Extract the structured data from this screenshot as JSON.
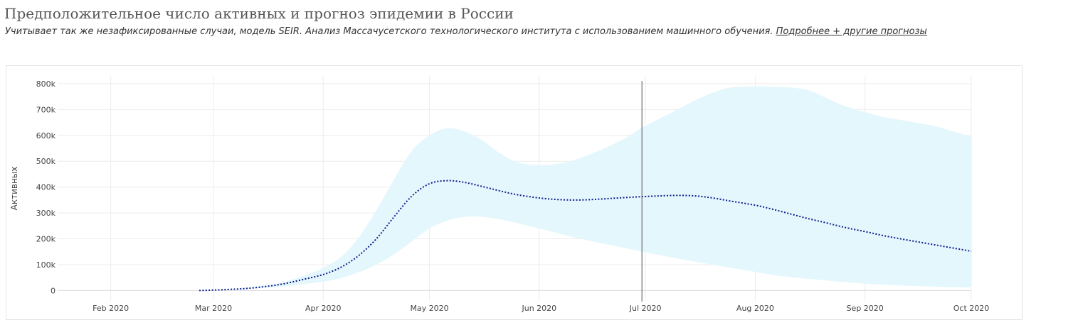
{
  "header": {
    "title": "Предположительное число активных и прогноз эпидемии в России",
    "subtitle": "Учитывает так же незафиксированные случаи, модель SEIR. Анализ Массачусетского технологического института с использованием машинного обучения.",
    "link_label": "Подробнее + другие прогнозы"
  },
  "colors": {
    "band_fill": "#e4f7fd",
    "line": "#0b1d8c",
    "grid": "#ececec",
    "marker_line": "#555555"
  },
  "chart_data": {
    "type": "line",
    "title": "",
    "xlabel": "",
    "ylabel": "Активных",
    "xlim": [
      "2020-01-17",
      "2020-10-01"
    ],
    "ylim": [
      -40000,
      830000
    ],
    "grid": true,
    "x_ticks": [
      {
        "date": "2020-02-01",
        "label": "Feb 2020"
      },
      {
        "date": "2020-03-01",
        "label": "Mar 2020"
      },
      {
        "date": "2020-04-01",
        "label": "Apr 2020"
      },
      {
        "date": "2020-05-01",
        "label": "May 2020"
      },
      {
        "date": "2020-06-01",
        "label": "Jun 2020"
      },
      {
        "date": "2020-07-01",
        "label": "Jul 2020"
      },
      {
        "date": "2020-08-01",
        "label": "Aug 2020"
      },
      {
        "date": "2020-09-01",
        "label": "Sep 2020"
      },
      {
        "date": "2020-10-01",
        "label": "Oct 2020"
      }
    ],
    "y_ticks": [
      {
        "value": 0,
        "label": "0"
      },
      {
        "value": 100000,
        "label": "100k"
      },
      {
        "value": 200000,
        "label": "200k"
      },
      {
        "value": 300000,
        "label": "300k"
      },
      {
        "value": 400000,
        "label": "400k"
      },
      {
        "value": 500000,
        "label": "500k"
      },
      {
        "value": 600000,
        "label": "600k"
      },
      {
        "value": 700000,
        "label": "700k"
      },
      {
        "value": 800000,
        "label": "800k"
      }
    ],
    "vertical_marker": "2020-06-30",
    "series": [
      {
        "kind": "line",
        "x": [
          "2020-02-26",
          "2020-03-05",
          "2020-03-12",
          "2020-03-20",
          "2020-03-27",
          "2020-04-01",
          "2020-04-06",
          "2020-04-11",
          "2020-04-16",
          "2020-04-21",
          "2020-04-26",
          "2020-05-01",
          "2020-05-06",
          "2020-05-11",
          "2020-05-16",
          "2020-05-21",
          "2020-05-26",
          "2020-06-01",
          "2020-06-06",
          "2020-06-11",
          "2020-06-16",
          "2020-06-21",
          "2020-06-26",
          "2020-06-30",
          "2020-07-05",
          "2020-07-10",
          "2020-07-15",
          "2020-07-20",
          "2020-07-25",
          "2020-08-01",
          "2020-08-06",
          "2020-08-11",
          "2020-08-16",
          "2020-08-21",
          "2020-08-26",
          "2020-09-01",
          "2020-09-06",
          "2020-09-11",
          "2020-09-16",
          "2020-09-21",
          "2020-09-26",
          "2020-10-01"
        ],
        "y": [
          0,
          4000,
          10000,
          24000,
          45000,
          62000,
          90000,
          135000,
          200000,
          285000,
          365000,
          413000,
          425000,
          418000,
          402000,
          385000,
          370000,
          358000,
          352000,
          350000,
          352000,
          356000,
          360000,
          363000,
          366000,
          368000,
          366000,
          358000,
          346000,
          330000,
          314000,
          296000,
          278000,
          262000,
          245000,
          228000,
          213000,
          200000,
          188000,
          176000,
          164000,
          152000
        ]
      },
      {
        "kind": "band",
        "x": [
          "2020-02-26",
          "2020-03-05",
          "2020-03-12",
          "2020-03-20",
          "2020-03-27",
          "2020-04-01",
          "2020-04-06",
          "2020-04-11",
          "2020-04-16",
          "2020-04-21",
          "2020-04-26",
          "2020-05-01",
          "2020-05-06",
          "2020-05-11",
          "2020-05-16",
          "2020-05-21",
          "2020-05-26",
          "2020-06-01",
          "2020-06-06",
          "2020-06-11",
          "2020-06-16",
          "2020-06-21",
          "2020-06-26",
          "2020-06-30",
          "2020-07-05",
          "2020-07-10",
          "2020-07-15",
          "2020-07-20",
          "2020-07-25",
          "2020-08-01",
          "2020-08-06",
          "2020-08-11",
          "2020-08-16",
          "2020-08-21",
          "2020-08-26",
          "2020-09-01",
          "2020-09-06",
          "2020-09-11",
          "2020-09-16",
          "2020-09-21",
          "2020-09-26",
          "2020-10-01"
        ],
        "upper": [
          0,
          5000,
          13000,
          30000,
          60000,
          88000,
          130000,
          205000,
          310000,
          430000,
          540000,
          600000,
          628000,
          615000,
          580000,
          530000,
          495000,
          485000,
          490000,
          505000,
          530000,
          560000,
          595000,
          630000,
          665000,
          700000,
          735000,
          765000,
          785000,
          790000,
          788000,
          785000,
          775000,
          745000,
          715000,
          690000,
          672000,
          660000,
          648000,
          635000,
          615000,
          595000
        ],
        "lower": [
          0,
          3000,
          8000,
          15000,
          26000,
          34000,
          48000,
          70000,
          100000,
          140000,
          190000,
          240000,
          270000,
          285000,
          285000,
          275000,
          260000,
          240000,
          222000,
          205000,
          190000,
          176000,
          162000,
          150000,
          137000,
          124000,
          112000,
          100000,
          88000,
          72000,
          60000,
          52000,
          45000,
          39000,
          33000,
          27000,
          23000,
          20000,
          17000,
          15000,
          13000,
          12000
        ]
      }
    ]
  }
}
